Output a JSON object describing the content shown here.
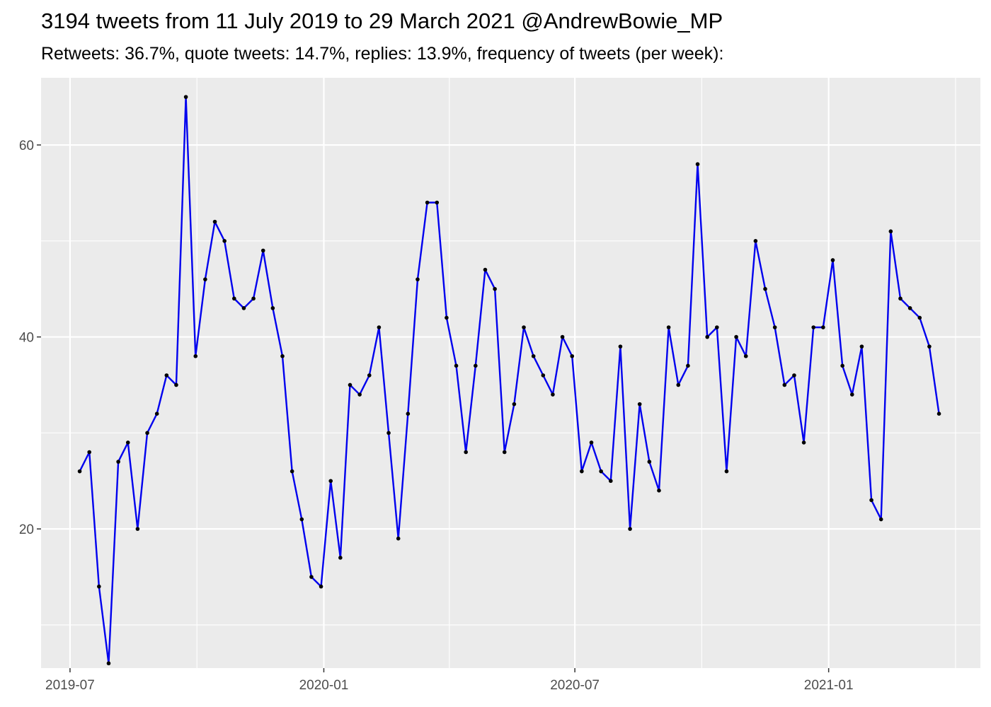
{
  "chart_data": {
    "type": "line",
    "title": "3194 tweets from 11 July 2019 to 29 March 2021 @AndrewBowie_MP",
    "subtitle": "Retweets: 36.7%, quote tweets: 14.7%, replies: 13.9%, frequency of tweets (per week):",
    "xlabel": "",
    "ylabel": "",
    "x_tick_labels": [
      "2019-07",
      "2020-01",
      "2020-07",
      "2021-01"
    ],
    "x_tick_dates": [
      "2019-07-01",
      "2020-01-01",
      "2020-07-01",
      "2021-01-01"
    ],
    "y_ticks": [
      20,
      40,
      60
    ],
    "x_range": [
      "2019-06-10",
      "2021-04-21"
    ],
    "ylim": [
      5.5,
      67
    ],
    "grid": true,
    "line_color": "#0000ee",
    "point_color": "#000000",
    "panel_color": "#ebebeb",
    "grid_color": "#ffffff",
    "series": [
      {
        "x": [
          "2019-07-08",
          "2019-07-15",
          "2019-07-22",
          "2019-07-29",
          "2019-08-05",
          "2019-08-12",
          "2019-08-19",
          "2019-08-26",
          "2019-09-02",
          "2019-09-09",
          "2019-09-16",
          "2019-09-23",
          "2019-09-30",
          "2019-10-07",
          "2019-10-14",
          "2019-10-21",
          "2019-10-28",
          "2019-11-04",
          "2019-11-11",
          "2019-11-18",
          "2019-11-25",
          "2019-12-02",
          "2019-12-09",
          "2019-12-16",
          "2019-12-23",
          "2019-12-30",
          "2020-01-06",
          "2020-01-13",
          "2020-01-20",
          "2020-01-27",
          "2020-02-03",
          "2020-02-10",
          "2020-02-17",
          "2020-02-24",
          "2020-03-02",
          "2020-03-09",
          "2020-03-16",
          "2020-03-23",
          "2020-03-30",
          "2020-04-06",
          "2020-04-13",
          "2020-04-20",
          "2020-04-27",
          "2020-05-04",
          "2020-05-11",
          "2020-05-18",
          "2020-05-25",
          "2020-06-01",
          "2020-06-08",
          "2020-06-15",
          "2020-06-22",
          "2020-06-29",
          "2020-07-06",
          "2020-07-13",
          "2020-07-20",
          "2020-07-27",
          "2020-08-03",
          "2020-08-10",
          "2020-08-17",
          "2020-08-24",
          "2020-08-31",
          "2020-09-07",
          "2020-09-14",
          "2020-09-21",
          "2020-09-28",
          "2020-10-05",
          "2020-10-12",
          "2020-10-19",
          "2020-10-26",
          "2020-11-02",
          "2020-11-09",
          "2020-11-16",
          "2020-11-23",
          "2020-11-30",
          "2020-12-07",
          "2020-12-14",
          "2020-12-21",
          "2020-12-28",
          "2021-01-04",
          "2021-01-11",
          "2021-01-18",
          "2021-01-25",
          "2021-02-01",
          "2021-02-08",
          "2021-02-15",
          "2021-02-22",
          "2021-03-01",
          "2021-03-08",
          "2021-03-15",
          "2021-03-22"
        ],
        "y": [
          26,
          28,
          14,
          6,
          27,
          29,
          20,
          30,
          32,
          36,
          35,
          65,
          38,
          46,
          52,
          50,
          44,
          43,
          44,
          49,
          43,
          38,
          26,
          21,
          15,
          14,
          25,
          17,
          35,
          34,
          36,
          41,
          30,
          19,
          32,
          46,
          54,
          54,
          42,
          37,
          28,
          37,
          47,
          45,
          28,
          33,
          41,
          38,
          36,
          34,
          40,
          38,
          26,
          29,
          26,
          25,
          39,
          20,
          33,
          27,
          24,
          41,
          35,
          37,
          58,
          40,
          41,
          26,
          40,
          38,
          50,
          45,
          41,
          35,
          36,
          29,
          41,
          41,
          48,
          37,
          34,
          39,
          23,
          21,
          51,
          44,
          43,
          42,
          39,
          32
        ]
      }
    ]
  }
}
